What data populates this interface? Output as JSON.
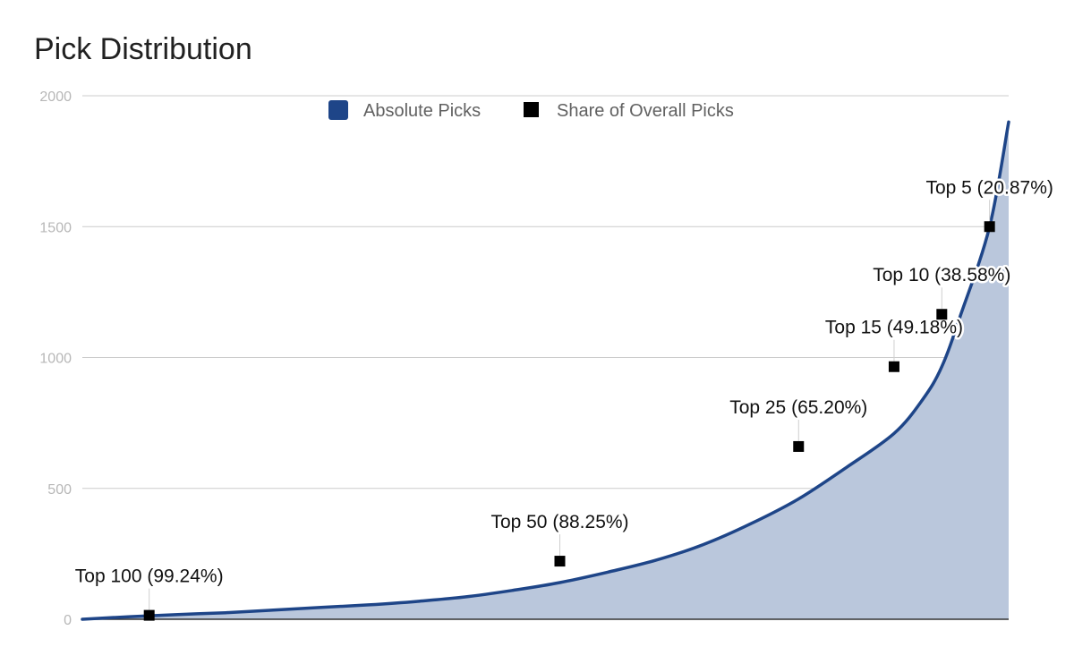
{
  "chart_data": {
    "type": "area",
    "title": "Pick Distribution",
    "ylim": [
      0,
      2000
    ],
    "y_ticks": [
      "0",
      "500",
      "1000",
      "1500",
      "2000"
    ],
    "grid": true,
    "legend_position": "top",
    "series": [
      {
        "name": "Absolute Picks",
        "kind": "area-line",
        "color": "#1e4588",
        "fill_color": "#bac7dc",
        "x": [
          100,
          95,
          90,
          85,
          80,
          75,
          70,
          65,
          60,
          55,
          50,
          45,
          40,
          35,
          30,
          25,
          20,
          15,
          12,
          10,
          8,
          5,
          3
        ],
        "values": [
          0,
          10,
          18,
          25,
          35,
          45,
          55,
          68,
          85,
          110,
          140,
          180,
          225,
          285,
          365,
          460,
          580,
          710,
          840,
          965,
          1165,
          1500,
          1900
        ]
      },
      {
        "name": "Share of Overall Picks",
        "kind": "markers",
        "color": "#000000",
        "points": [
          {
            "x": 93,
            "y": 15,
            "label": "Top 100 (99.24%)"
          },
          {
            "x": 50,
            "y": 222,
            "label": "Top 50 (88.25%)"
          },
          {
            "x": 25,
            "y": 660,
            "label": "Top 25 (65.20%)"
          },
          {
            "x": 15,
            "y": 965,
            "label": "Top 15 (49.18%)"
          },
          {
            "x": 10,
            "y": 1165,
            "label": "Top 10 (38.58%)"
          },
          {
            "x": 5,
            "y": 1500,
            "label": "Top 5 (20.87%)"
          }
        ]
      }
    ]
  }
}
